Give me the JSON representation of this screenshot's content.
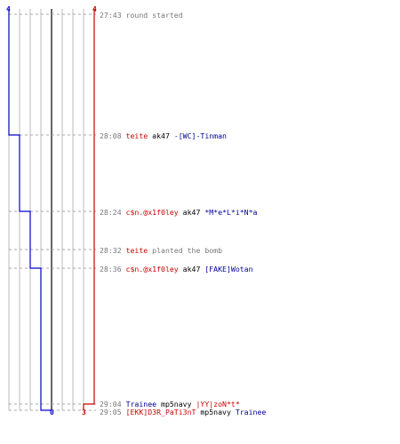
{
  "colors": {
    "team_blue": "#0000cc",
    "team_red": "#cc0000",
    "grid": "#bbbbbb",
    "center_line": "#666666",
    "dashed": "#aaaaaa",
    "timestamp": "#777777",
    "text_red": "#cc0000",
    "text_blue": "#000099"
  },
  "counters": {
    "blue_start": "4",
    "red_start": "4",
    "blue_end": "0",
    "red_end": "3"
  },
  "events": [
    {
      "time": "27:43",
      "parts": [
        {
          "text": "round started",
          "style": "gray"
        }
      ]
    },
    {
      "time": "28:08",
      "parts": [
        {
          "text": "teite",
          "style": "red"
        },
        {
          "text": " ak47 ",
          "style": "weap"
        },
        {
          "text": "-[WC]-Tinman",
          "style": "blue"
        }
      ]
    },
    {
      "time": "28:24",
      "parts": [
        {
          "text": "c$n.@x1f0ley",
          "style": "red"
        },
        {
          "text": " ak47 ",
          "style": "weap"
        },
        {
          "text": "*M*e*L*i*N*a",
          "style": "blue"
        }
      ]
    },
    {
      "time": "28:32",
      "parts": [
        {
          "text": "teite",
          "style": "red"
        },
        {
          "text": " planted the bomb",
          "style": "gray"
        }
      ]
    },
    {
      "time": "28:36",
      "parts": [
        {
          "text": "c$n.@x1f0ley",
          "style": "red"
        },
        {
          "text": " ak47 ",
          "style": "weap"
        },
        {
          "text": "[FAKE]Wotan",
          "style": "blue"
        }
      ]
    },
    {
      "time": "29:04",
      "parts": [
        {
          "text": "Trainee",
          "style": "blue"
        },
        {
          "text": " mp5navy ",
          "style": "weap"
        },
        {
          "text": "|YY|zoN*t*",
          "style": "red"
        }
      ]
    },
    {
      "time": "29:05",
      "parts": [
        {
          "text": "[EKK]D3R_PaTi3nT",
          "style": "red"
        },
        {
          "text": " mp5navy ",
          "style": "weap"
        },
        {
          "text": "Trainee",
          "style": "blue"
        }
      ]
    }
  ]
}
